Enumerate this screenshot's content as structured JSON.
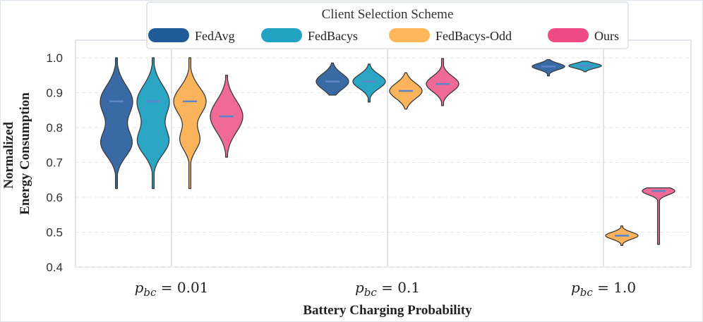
{
  "chart_data": {
    "type": "violin",
    "legend_title": "Client Selection Scheme",
    "ylabel_line1": "Normalized",
    "ylabel_line2": "Energy Consumption",
    "xlabel": "Battery Charging Probability",
    "ylim": [
      0.4,
      1.05
    ],
    "yticks": [
      "0.4",
      "0.5",
      "0.6",
      "0.7",
      "0.8",
      "0.9",
      "1.0"
    ],
    "categories": [
      {
        "sym": "p",
        "sub": "bc",
        "rest": " = 0.01"
      },
      {
        "sym": "p",
        "sub": "bc",
        "rest": " = 0.1"
      },
      {
        "sym": "p",
        "sub": "bc",
        "rest": " = 1.0"
      }
    ],
    "series": [
      {
        "name": "FedAvg",
        "color": "#3a6aa6",
        "legend_color": "#1f5a99",
        "groups": [
          {
            "min": 0.625,
            "max": 1.0,
            "median": 0.875,
            "modes": [
              {
                "c": 0.875,
                "s": 0.045,
                "w": 1.0
              },
              {
                "c": 0.755,
                "s": 0.038,
                "w": 0.95
              }
            ]
          },
          {
            "min": 0.893,
            "max": 0.985,
            "median": 0.932,
            "modes": [
              {
                "c": 0.932,
                "s": 0.022,
                "w": 1.0
              }
            ]
          },
          {
            "min": 0.948,
            "max": 0.995,
            "median": 0.975,
            "modes": [
              {
                "c": 0.975,
                "s": 0.009,
                "w": 1.0
              }
            ]
          }
        ]
      },
      {
        "name": "FedBacys",
        "color": "#2aa5c4",
        "legend_color": "#22a3c3",
        "groups": [
          {
            "min": 0.625,
            "max": 1.0,
            "median": 0.875,
            "modes": [
              {
                "c": 0.875,
                "s": 0.045,
                "w": 1.0
              },
              {
                "c": 0.76,
                "s": 0.038,
                "w": 0.95
              }
            ]
          },
          {
            "min": 0.873,
            "max": 0.982,
            "median": 0.932,
            "modes": [
              {
                "c": 0.932,
                "s": 0.02,
                "w": 1.0
              }
            ]
          },
          {
            "min": 0.96,
            "max": 0.99,
            "median": 0.977,
            "modes": [
              {
                "c": 0.977,
                "s": 0.007,
                "w": 1.0
              }
            ]
          }
        ]
      },
      {
        "name": "FedBacys-Odd",
        "color": "#fbb45c",
        "legend_color": "#ffb75a",
        "groups": [
          {
            "min": 0.625,
            "max": 1.0,
            "median": 0.875,
            "modes": [
              {
                "c": 0.875,
                "s": 0.04,
                "w": 1.0
              },
              {
                "c": 0.765,
                "s": 0.03,
                "w": 0.6
              }
            ]
          },
          {
            "min": 0.853,
            "max": 0.957,
            "median": 0.905,
            "modes": [
              {
                "c": 0.905,
                "s": 0.022,
                "w": 1.0
              }
            ]
          },
          {
            "min": 0.462,
            "max": 0.518,
            "median": 0.49,
            "modes": [
              {
                "c": 0.49,
                "s": 0.01,
                "w": 1.0
              }
            ]
          }
        ]
      },
      {
        "name": "Ours",
        "color": "#ef6a96",
        "legend_color": "#ee4a84",
        "groups": [
          {
            "min": 0.715,
            "max": 0.95,
            "median": 0.832,
            "modes": [
              {
                "c": 0.832,
                "s": 0.045,
                "w": 1.0
              }
            ]
          },
          {
            "min": 0.863,
            "max": 0.998,
            "median": 0.925,
            "modes": [
              {
                "c": 0.925,
                "s": 0.022,
                "w": 1.0
              }
            ]
          },
          {
            "min": 0.465,
            "max": 0.627,
            "median": 0.618,
            "modes": [
              {
                "c": 0.618,
                "s": 0.011,
                "w": 1.0
              }
            ]
          }
        ]
      }
    ]
  }
}
